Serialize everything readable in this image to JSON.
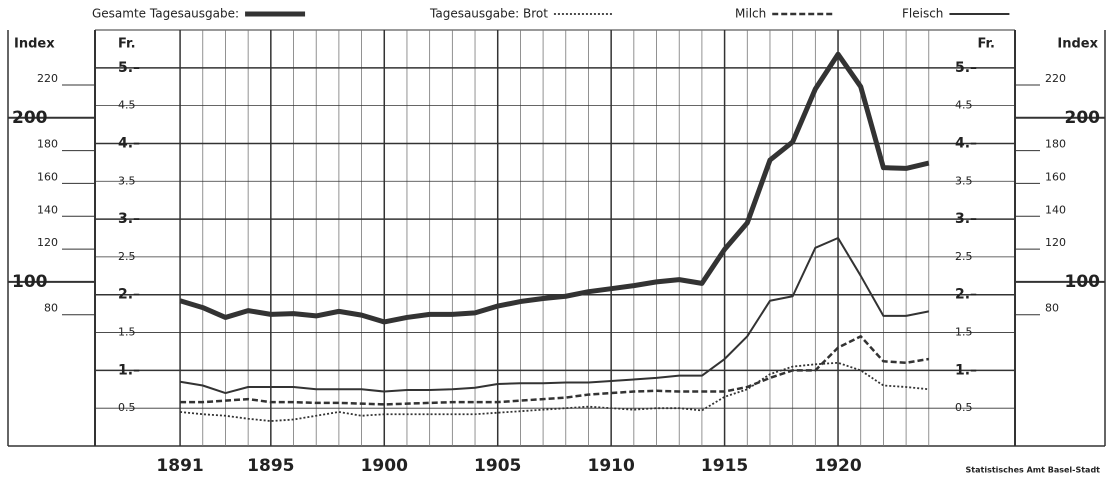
{
  "chart_data": {
    "type": "line",
    "y_axis_label": "Fr.",
    "y2_axis_label": "Index",
    "footer": "Statistisches Amt Basel-Stadt",
    "x": [
      1891,
      1892,
      1893,
      1894,
      1895,
      1896,
      1897,
      1898,
      1899,
      1900,
      1901,
      1902,
      1903,
      1904,
      1905,
      1906,
      1907,
      1908,
      1909,
      1910,
      1911,
      1912,
      1913,
      1914,
      1915,
      1916,
      1917,
      1918,
      1919,
      1920,
      1921,
      1922,
      1923,
      1924
    ],
    "xlim": [
      1887.25,
      1927.8
    ],
    "xticks": [
      1891,
      1895,
      1900,
      1905,
      1910,
      1915,
      1920
    ],
    "ylim": [
      0,
      5.5
    ],
    "yticks": [
      0.5,
      {
        "value": 1,
        "label": "1.–"
      },
      1.5,
      {
        "value": 2,
        "label": "2.–"
      },
      2.5,
      {
        "value": 3,
        "label": "3.–"
      },
      3.5,
      {
        "value": 4,
        "label": "4.–"
      },
      4.5,
      {
        "value": 5,
        "label": "5.–"
      }
    ],
    "y2lim": [
      0,
      253.5
    ],
    "y2ticks": [
      80,
      100,
      120,
      140,
      160,
      180,
      200,
      220
    ],
    "grid": true,
    "series": [
      {
        "name": "Gesamte Tagesausgabe:",
        "color": "#333333",
        "line_style": "thick",
        "values": [
          1.92,
          1.83,
          1.7,
          1.79,
          1.74,
          1.75,
          1.72,
          1.78,
          1.73,
          1.64,
          1.7,
          1.74,
          1.74,
          1.76,
          1.85,
          1.91,
          1.95,
          1.98,
          2.04,
          2.08,
          2.12,
          2.17,
          2.2,
          2.15,
          2.6,
          2.95,
          3.78,
          4.02,
          4.72,
          5.18,
          4.75,
          3.68,
          3.67,
          3.74
        ]
      },
      {
        "name": "Tagesausgabe: Brot",
        "color": "#333333",
        "line_style": "double",
        "values": [
          0.45,
          0.42,
          0.4,
          0.36,
          0.33,
          0.35,
          0.4,
          0.45,
          0.4,
          0.42,
          0.42,
          0.42,
          0.42,
          0.42,
          0.44,
          0.46,
          0.48,
          0.5,
          0.52,
          0.5,
          0.48,
          0.5,
          0.5,
          0.47,
          0.65,
          0.75,
          0.95,
          1.05,
          1.08,
          1.1,
          1.0,
          0.8,
          0.78,
          0.75
        ]
      },
      {
        "name": "Milch",
        "color": "#333333",
        "line_style": "dashed",
        "values": [
          0.58,
          0.58,
          0.6,
          0.62,
          0.58,
          0.58,
          0.57,
          0.57,
          0.56,
          0.55,
          0.56,
          0.57,
          0.58,
          0.58,
          0.58,
          0.6,
          0.62,
          0.64,
          0.68,
          0.7,
          0.72,
          0.73,
          0.72,
          0.72,
          0.72,
          0.78,
          0.9,
          1.0,
          1.0,
          1.3,
          1.45,
          1.12,
          1.1,
          1.15
        ]
      },
      {
        "name": "Fleisch",
        "color": "#333333",
        "line_style": "solid",
        "values": [
          0.85,
          0.8,
          0.7,
          0.78,
          0.78,
          0.78,
          0.75,
          0.75,
          0.75,
          0.72,
          0.74,
          0.74,
          0.75,
          0.77,
          0.82,
          0.83,
          0.83,
          0.84,
          0.84,
          0.86,
          0.88,
          0.9,
          0.93,
          0.93,
          1.15,
          1.45,
          1.92,
          1.98,
          2.62,
          2.75,
          2.25,
          1.72,
          1.72,
          1.78
        ]
      }
    ]
  }
}
